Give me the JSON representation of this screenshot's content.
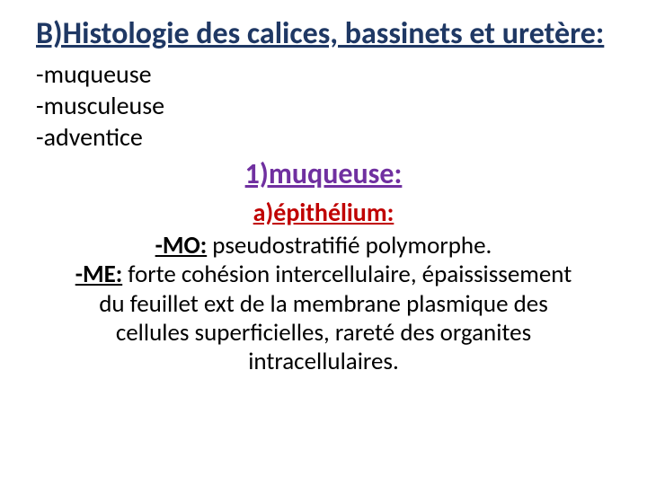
{
  "colors": {
    "title": "#1f3864",
    "list": "#000000",
    "subtitle": "#7030a0",
    "subsub": "#c00000",
    "body": "#000000"
  },
  "title": "B)Histologie des calices, bassinets et uretère:",
  "list": {
    "item1": "-muqueuse",
    "item2": "-musculeuse",
    "item3": "-adventice"
  },
  "subtitle": "1)muqueuse:",
  "subsub": "a)épithélium:",
  "body": {
    "mo_label": "-MO:",
    "mo_text": " pseudostratifié polymorphe.",
    "me_label": "-ME:",
    "me_text": " forte cohésion intercellulaire, épaississement du feuillet ext de la membrane plasmique des cellules superficielles, rareté des organites intracellulaires."
  },
  "font_sizes": {
    "title": 34,
    "list": 28,
    "subtitle": 32,
    "subsub": 28,
    "body": 27
  }
}
